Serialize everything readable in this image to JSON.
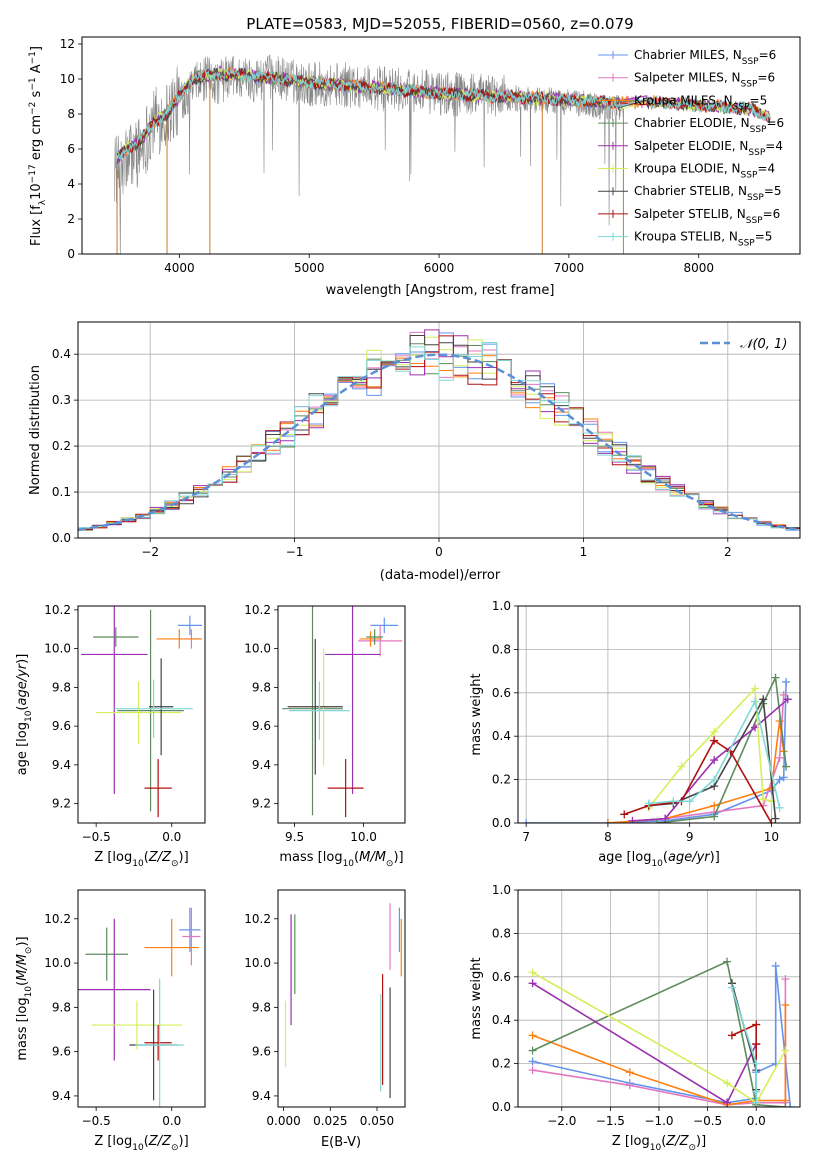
{
  "colors": {
    "chabrier_miles": "#6495ed",
    "salpeter_miles": "#e377c2",
    "kroupa_miles": "#ff7f0e",
    "chabrier_elodie": "#5e8c5e",
    "salpeter_elodie": "#9b30b0",
    "kroupa_elodie": "#d4ef5a",
    "chabrier_stelib": "#444444",
    "salpeter_stelib": "#b01010",
    "kroupa_stelib": "#80d8d8",
    "observed_spectrum": "#888888",
    "gaussian": "#5b8fd6",
    "grid": "#b0b0b0"
  },
  "chart_data": [
    {
      "id": "spectrum",
      "type": "line",
      "title": "PLATE=0583, MJD=52055, FIBERID=0560, z=0.079",
      "xlabel": "wavelength [Angstrom, rest frame]",
      "ylabel": "Flux [f_λ 10^-17 erg cm^-2 s^-1 A^-1]",
      "xlim": [
        3250,
        8780
      ],
      "ylim": [
        0,
        12.4
      ],
      "xticks": [
        "4000",
        "5000",
        "6000",
        "7000",
        "8000"
      ],
      "yticks": [
        "0",
        "2",
        "4",
        "6",
        "8",
        "10",
        "12"
      ],
      "grid": false,
      "legend_position": "top-right",
      "observed": {
        "x": [
          3500,
          3550,
          3600,
          3700,
          3800,
          3900,
          4000,
          4100,
          4200,
          4300,
          4400,
          4500,
          4600,
          4700,
          4800,
          4900,
          5000,
          5200,
          5400,
          5600,
          5800,
          6000,
          6200,
          6400,
          6600,
          6800,
          7000,
          7200,
          7400
        ],
        "y": [
          5.0,
          4.5,
          5.5,
          6.0,
          7.5,
          8.0,
          8.8,
          9.5,
          10.0,
          9.8,
          10.2,
          10.0,
          10.0,
          10.1,
          10.0,
          9.8,
          9.7,
          9.7,
          9.6,
          9.4,
          9.3,
          9.2,
          9.1,
          9.0,
          8.9,
          8.8,
          8.7,
          8.5,
          8.3
        ],
        "noise": 1.3
      },
      "series": [
        {
          "name": "Chabrier MILES, N_SSP=6",
          "color_key": "chabrier_miles"
        },
        {
          "name": "Salpeter MILES, N_SSP=6",
          "color_key": "salpeter_miles"
        },
        {
          "name": "Kroupa MILES, N_SSP=5",
          "color_key": "kroupa_miles"
        },
        {
          "name": "Chabrier ELODIE, N_SSP=6",
          "color_key": "chabrier_elodie"
        },
        {
          "name": "Salpeter ELODIE, N_SSP=4",
          "color_key": "salpeter_elodie"
        },
        {
          "name": "Kroupa ELODIE, N_SSP=4",
          "color_key": "kroupa_elodie"
        },
        {
          "name": "Chabrier STELIB, N_SSP=5",
          "color_key": "chabrier_stelib"
        },
        {
          "name": "Salpeter STELIB, N_SSP=6",
          "color_key": "salpeter_stelib"
        },
        {
          "name": "Kroupa STELIB, N_SSP=5",
          "color_key": "kroupa_stelib"
        }
      ],
      "model_continuum": {
        "x": [
          3520,
          3600,
          3700,
          3800,
          3900,
          4000,
          4100,
          4200,
          4300,
          4500,
          4800,
          5000,
          5500,
          6000,
          6500,
          7000,
          7400,
          7600,
          8000,
          8400,
          8550
        ],
        "y": [
          5.5,
          6.0,
          6.5,
          7.5,
          8.0,
          9.0,
          10.0,
          10.2,
          10.3,
          10.2,
          10.0,
          9.8,
          9.5,
          9.2,
          9.0,
          8.8,
          8.6,
          8.7,
          8.5,
          8.3,
          7.8
        ]
      }
    },
    {
      "id": "residuals",
      "type": "histogram",
      "xlabel": "(data-model)/error",
      "ylabel": "Normed distribution",
      "xlim": [
        -2.5,
        2.5
      ],
      "ylim": [
        0,
        0.47
      ],
      "xticks": [
        "−2",
        "−1",
        "0",
        "1",
        "2"
      ],
      "yticks": [
        "0.0",
        "0.1",
        "0.2",
        "0.3",
        "0.4"
      ],
      "grid": true,
      "legend_position": "top-right",
      "gaussian_label": "𝒩(0, 1)",
      "bin_width": 0.1
    },
    {
      "id": "age_vs_z",
      "type": "scatter",
      "xlabel": "Z [log10(Z/Z⊙)]",
      "ylabel": "age  [log10(age/yr)]",
      "xlim": [
        -0.62,
        0.22
      ],
      "ylim": [
        9.1,
        10.22
      ],
      "xticks": [
        "−0.5",
        "0.0"
      ],
      "yticks": [
        "9.2",
        "9.4",
        "9.6",
        "9.8",
        "10.0",
        "10.2"
      ],
      "grid": false,
      "points": [
        {
          "model": "chabrier_miles",
          "x": 0.12,
          "y": 10.12,
          "xerr": 0.08,
          "yerr": 0.05
        },
        {
          "model": "salpeter_miles",
          "x": 0.13,
          "y": 10.05,
          "xerr": 0.07,
          "yerr": 0.05
        },
        {
          "model": "kroupa_miles",
          "x": 0.05,
          "y": 10.05,
          "xerr": 0.15,
          "yerr": 0.05
        },
        {
          "model": "chabrier_elodie",
          "x": -0.14,
          "y": 9.68,
          "xerr": 0.22,
          "yerr": 0.52
        },
        {
          "model": "salpeter_elodie",
          "x": -0.38,
          "y": 9.97,
          "xerr": 0.22,
          "yerr": 0.72
        },
        {
          "model": "kroupa_elodie",
          "x": -0.22,
          "y": 9.67,
          "xerr": 0.28,
          "yerr": 0.16
        },
        {
          "model": "chabrier_stelib",
          "x": -0.07,
          "y": 9.7,
          "xerr": 0.08,
          "yerr": 0.25
        },
        {
          "model": "salpeter_stelib",
          "x": -0.09,
          "y": 9.28,
          "xerr": 0.09,
          "yerr": 0.15
        },
        {
          "model": "kroupa_stelib",
          "x": -0.12,
          "y": 9.69,
          "xerr": 0.26,
          "yerr": 0.15
        },
        {
          "model": "chabrier_elodie",
          "x": -0.37,
          "y": 10.06,
          "xerr": 0.15,
          "yerr": 0.05
        }
      ]
    },
    {
      "id": "age_vs_mass",
      "type": "scatter",
      "xlabel": "mass [log10(M/M⊙)]",
      "ylabel": "",
      "xlim": [
        9.38,
        10.3
      ],
      "ylim": [
        9.1,
        10.22
      ],
      "xticks": [
        "9.5",
        "10.0"
      ],
      "yticks": [
        "9.2",
        "9.4",
        "9.6",
        "9.8",
        "10.0",
        "10.2"
      ],
      "grid": false,
      "points": [
        {
          "model": "chabrier_miles",
          "x": 10.15,
          "y": 10.12,
          "xerr": 0.1,
          "yerr": 0.04
        },
        {
          "model": "salpeter_miles",
          "x": 10.12,
          "y": 10.04,
          "xerr": 0.16,
          "yerr": 0.08
        },
        {
          "model": "kroupa_miles",
          "x": 10.05,
          "y": 10.05,
          "xerr": 0.08,
          "yerr": 0.04
        },
        {
          "model": "chabrier_elodie",
          "x": 9.63,
          "y": 9.69,
          "xerr": 0.22,
          "yerr": 0.55
        },
        {
          "model": "salpeter_elodie",
          "x": 9.92,
          "y": 9.97,
          "xerr": 0.2,
          "yerr": 0.72
        },
        {
          "model": "kroupa_elodie",
          "x": 9.71,
          "y": 9.7,
          "xerr": 0.06,
          "yerr": 0.3
        },
        {
          "model": "chabrier_stelib",
          "x": 9.65,
          "y": 9.7,
          "xerr": 0.2,
          "yerr": 0.35
        },
        {
          "model": "salpeter_stelib",
          "x": 9.87,
          "y": 9.28,
          "xerr": 0.13,
          "yerr": 0.15
        },
        {
          "model": "kroupa_stelib",
          "x": 9.68,
          "y": 9.68,
          "xerr": 0.22,
          "yerr": 0.15
        },
        {
          "model": "chabrier_elodie",
          "x": 10.08,
          "y": 10.06,
          "xerr": 0.06,
          "yerr": 0.04
        }
      ]
    },
    {
      "id": "mass_weight_vs_age",
      "type": "line",
      "xlabel": "age  [log10(age/yr)]",
      "ylabel": "mass weight",
      "xlim": [
        6.9,
        10.35
      ],
      "ylim": [
        0,
        1.0
      ],
      "xticks": [
        "7",
        "8",
        "9",
        "10"
      ],
      "yticks": [
        "0.0",
        "0.2",
        "0.4",
        "0.6",
        "0.8",
        "1.0"
      ],
      "grid": true,
      "series": [
        {
          "model": "chabrier_miles",
          "x": [
            7.0,
            8.0,
            8.7,
            9.3,
            10.0,
            10.1,
            10.15,
            10.18
          ],
          "y": [
            0.0,
            0.0,
            0.01,
            0.04,
            0.15,
            0.2,
            0.21,
            0.65
          ]
        },
        {
          "model": "salpeter_miles",
          "x": [
            8.0,
            8.7,
            9.3,
            9.9,
            10.1,
            10.15
          ],
          "y": [
            0.0,
            0.02,
            0.05,
            0.08,
            0.3,
            0.59
          ]
        },
        {
          "model": "kroupa_miles",
          "x": [
            8.0,
            8.7,
            9.3,
            10.0,
            10.1,
            10.15
          ],
          "y": [
            0.0,
            0.02,
            0.08,
            0.16,
            0.47,
            0.33
          ]
        },
        {
          "model": "chabrier_elodie",
          "x": [
            8.6,
            9.3,
            9.9,
            10.05,
            10.18
          ],
          "y": [
            0.0,
            0.03,
            0.55,
            0.67,
            0.26
          ]
        },
        {
          "model": "salpeter_elodie",
          "x": [
            8.3,
            8.7,
            9.3,
            9.8,
            10.2
          ],
          "y": [
            0.01,
            0.02,
            0.29,
            0.44,
            0.57
          ]
        },
        {
          "model": "kroupa_elodie",
          "x": [
            8.5,
            8.9,
            9.3,
            9.8,
            9.9,
            10.0
          ],
          "y": [
            0.07,
            0.26,
            0.42,
            0.62,
            0.11,
            0.1
          ]
        },
        {
          "model": "chabrier_stelib",
          "x": [
            8.5,
            8.8,
            9.3,
            9.9,
            10.05
          ],
          "y": [
            0.08,
            0.09,
            0.17,
            0.57,
            0.02
          ]
        },
        {
          "model": "salpeter_stelib",
          "x": [
            8.2,
            8.5,
            8.9,
            9.3,
            9.5,
            10.0
          ],
          "y": [
            0.04,
            0.08,
            0.1,
            0.38,
            0.33,
            0.0
          ]
        },
        {
          "model": "kroupa_stelib",
          "x": [
            8.5,
            8.8,
            9.0,
            9.3,
            9.8,
            10.1
          ],
          "y": [
            0.09,
            0.1,
            0.1,
            0.2,
            0.56,
            0.07
          ]
        }
      ]
    },
    {
      "id": "mass_vs_z",
      "type": "scatter",
      "xlabel": "Z [log10(Z/Z⊙)]",
      "ylabel": "mass [log10(M/M⊙)]",
      "xlim": [
        -0.62,
        0.22
      ],
      "ylim": [
        9.35,
        10.33
      ],
      "xticks": [
        "−0.5",
        "0.0"
      ],
      "yticks": [
        "9.4",
        "9.6",
        "9.8",
        "10.0",
        "10.2"
      ],
      "grid": false,
      "points": [
        {
          "model": "chabrier_miles",
          "x": 0.12,
          "y": 10.15,
          "xerr": 0.07,
          "yerr": 0.1
        },
        {
          "model": "salpeter_miles",
          "x": 0.13,
          "y": 10.12,
          "xerr": 0.06,
          "yerr": 0.13
        },
        {
          "model": "kroupa_miles",
          "x": 0.0,
          "y": 10.07,
          "xerr": 0.18,
          "yerr": 0.13
        },
        {
          "model": "chabrier_elodie",
          "x": -0.43,
          "y": 10.04,
          "xerr": 0.14,
          "yerr": 0.12
        },
        {
          "model": "salpeter_elodie",
          "x": -0.38,
          "y": 9.88,
          "xerr": 0.24,
          "yerr": 0.32
        },
        {
          "model": "kroupa_elodie",
          "x": -0.23,
          "y": 9.72,
          "xerr": 0.3,
          "yerr": 0.11
        },
        {
          "model": "chabrier_stelib",
          "x": -0.12,
          "y": 9.63,
          "xerr": 0.16,
          "yerr": 0.25
        },
        {
          "model": "salpeter_stelib",
          "x": -0.09,
          "y": 9.64,
          "xerr": 0.09,
          "yerr": 0.08
        },
        {
          "model": "kroupa_stelib",
          "x": -0.08,
          "y": 9.63,
          "xerr": 0.16,
          "yerr": 0.3
        }
      ]
    },
    {
      "id": "mass_vs_ebv",
      "type": "scatter",
      "xlabel": "E(B-V)",
      "ylabel": "",
      "xlim": [
        -0.003,
        0.065
      ],
      "ylim": [
        9.35,
        10.33
      ],
      "xticks": [
        "0.000",
        "0.025",
        "0.050"
      ],
      "yticks": [
        "9.4",
        "9.6",
        "9.8",
        "10.0",
        "10.2"
      ],
      "grid": false,
      "points": [
        {
          "model": "chabrier_miles",
          "x": 0.062,
          "y": 10.15,
          "xerr": 0,
          "yerr": 0.1
        },
        {
          "model": "salpeter_miles",
          "x": 0.057,
          "y": 10.12,
          "xerr": 0,
          "yerr": 0.15
        },
        {
          "model": "kroupa_miles",
          "x": 0.063,
          "y": 10.07,
          "xerr": 0,
          "yerr": 0.13
        },
        {
          "model": "chabrier_elodie",
          "x": 0.006,
          "y": 10.04,
          "xerr": 0,
          "yerr": 0.18
        },
        {
          "model": "salpeter_elodie",
          "x": 0.004,
          "y": 9.97,
          "xerr": 0,
          "yerr": 0.25
        },
        {
          "model": "kroupa_elodie",
          "x": 0.001,
          "y": 9.68,
          "xerr": 0,
          "yerr": 0.15
        },
        {
          "model": "chabrier_stelib",
          "x": 0.057,
          "y": 9.64,
          "xerr": 0,
          "yerr": 0.25
        },
        {
          "model": "salpeter_stelib",
          "x": 0.053,
          "y": 9.7,
          "xerr": 0,
          "yerr": 0.25
        },
        {
          "model": "kroupa_stelib",
          "x": 0.052,
          "y": 9.64,
          "xerr": 0,
          "yerr": 0.22
        }
      ]
    },
    {
      "id": "mass_weight_vs_z",
      "type": "line",
      "xlabel": "Z [log10(Z/Z⊙)]",
      "ylabel": "mass weight",
      "xlim": [
        -2.45,
        0.45
      ],
      "ylim": [
        0,
        1.0
      ],
      "xticks": [
        "−2.0",
        "−1.5",
        "−1.0",
        "−0.5",
        "0.0"
      ],
      "yticks": [
        "0.0",
        "0.2",
        "0.4",
        "0.6",
        "0.8",
        "1.0"
      ],
      "grid": true,
      "series": [
        {
          "model": "chabrier_miles",
          "x": [
            -2.3,
            -1.3,
            -0.3,
            0.0,
            0.0,
            0.2,
            0.2,
            0.35
          ],
          "y": [
            0.21,
            0.11,
            0.02,
            0.04,
            0.16,
            0.2,
            0.65,
            0.0
          ]
        },
        {
          "model": "salpeter_miles",
          "x": [
            -2.3,
            -1.3,
            -0.3,
            0.0,
            0.3,
            0.3
          ],
          "y": [
            0.17,
            0.1,
            0.01,
            0.02,
            0.02,
            0.59
          ]
        },
        {
          "model": "kroupa_miles",
          "x": [
            -2.3,
            -1.3,
            -0.3,
            0.0,
            0.3,
            0.3
          ],
          "y": [
            0.33,
            0.16,
            0.01,
            0.03,
            0.03,
            0.47
          ]
        },
        {
          "model": "chabrier_elodie",
          "x": [
            -2.3,
            -0.3,
            0.0,
            0.3
          ],
          "y": [
            0.26,
            0.67,
            0.01,
            0.0
          ]
        },
        {
          "model": "salpeter_elodie",
          "x": [
            -2.3,
            -0.3,
            0.0,
            -0.3
          ],
          "y": [
            0.57,
            0.02,
            0.29,
            0.02
          ]
        },
        {
          "model": "kroupa_elodie",
          "x": [
            -2.3,
            -0.3,
            0.0,
            0.3
          ],
          "y": [
            0.62,
            0.11,
            0.02,
            0.26
          ]
        },
        {
          "model": "chabrier_stelib",
          "x": [
            -0.25,
            0.0,
            0.0,
            0.0
          ],
          "y": [
            0.57,
            0.17,
            0.08,
            0.02
          ]
        },
        {
          "model": "salpeter_stelib",
          "x": [
            -0.25,
            0.0,
            0.0,
            0.0
          ],
          "y": [
            0.33,
            0.38,
            0.29,
            0.0
          ]
        },
        {
          "model": "kroupa_stelib",
          "x": [
            -0.25,
            0.0,
            0.0,
            0.0
          ],
          "y": [
            0.55,
            0.2,
            0.07,
            0.02
          ]
        }
      ]
    }
  ]
}
